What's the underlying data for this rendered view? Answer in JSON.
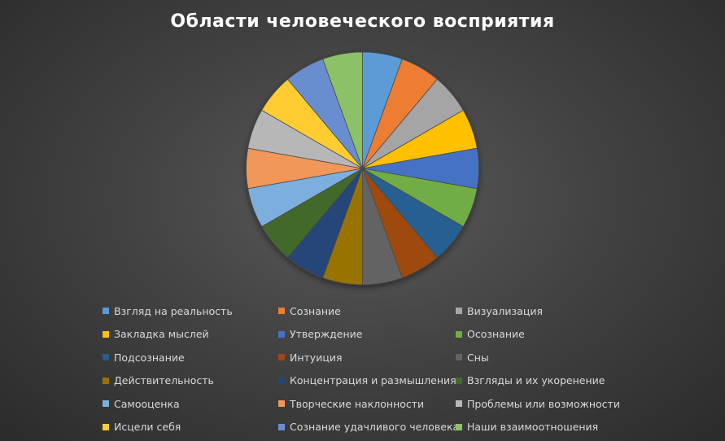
{
  "chart_data": {
    "type": "pie",
    "title": "Области человеческого восприятия",
    "legend_position": "bottom",
    "categories": [
      "Взгляд на реальность",
      "Сознание",
      "Визуализация",
      "Закладка мыслей",
      "Утверждение",
      "Осознание",
      "Подсознание",
      "Интуиция",
      "Сны",
      "Действительность",
      "Концентрация и размышления",
      "Взгляды и их укоренение",
      "Самооценка",
      "Творческие наклонности",
      "Проблемы или возможности",
      "Исцели себя",
      "Сознание удачливого человека",
      "Наши взаимоотношения"
    ],
    "values": [
      1,
      1,
      1,
      1,
      1,
      1,
      1,
      1,
      1,
      1,
      1,
      1,
      1,
      1,
      1,
      1,
      1,
      1
    ],
    "colors": [
      "#5b9bd5",
      "#ed7d31",
      "#a5a5a5",
      "#ffc000",
      "#4472c4",
      "#70ad47",
      "#255e91",
      "#9e480e",
      "#636363",
      "#997300",
      "#264478",
      "#43682b",
      "#7cafdd",
      "#f1975a",
      "#b7b7b7",
      "#ffcd33",
      "#698ed0",
      "#8cc168"
    ]
  }
}
